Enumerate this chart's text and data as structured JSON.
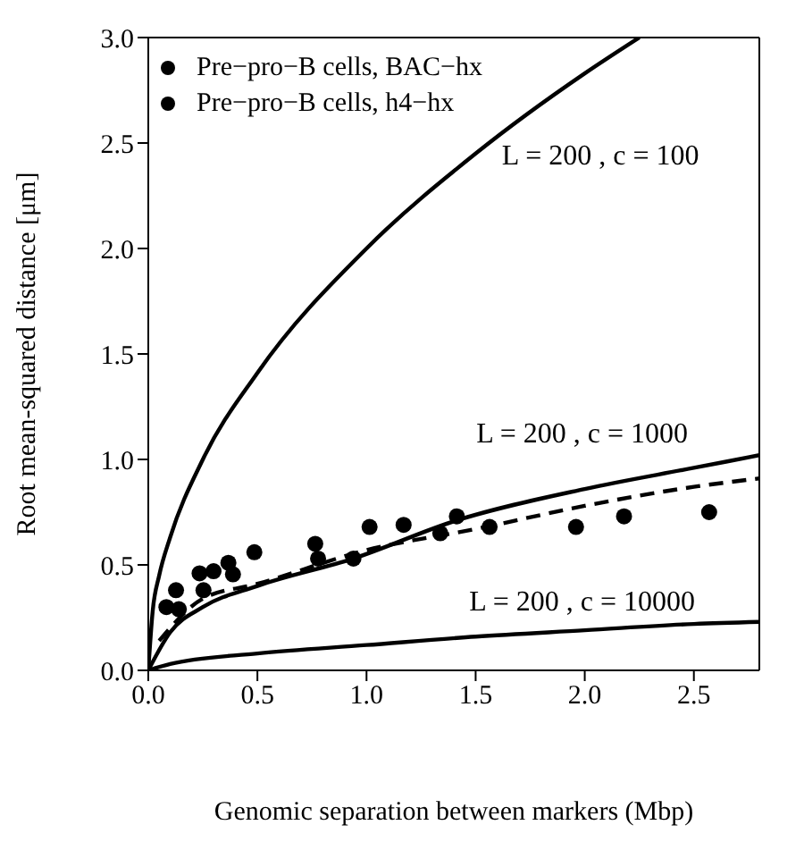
{
  "chart_data": {
    "type": "scatter",
    "xlabel": "Genomic separation between markers (Mbp)",
    "ylabel": "Root mean-squared distance [μm]",
    "xlim": [
      0,
      2.8
    ],
    "ylim": [
      0,
      3.0
    ],
    "xticks": [
      {
        "value": 0,
        "label": "0.0"
      },
      0.5,
      {
        "value": 1,
        "label": "1.0"
      },
      1.5,
      {
        "value": 2,
        "label": "2.0"
      },
      2.5
    ],
    "yticks": [
      {
        "value": 0,
        "label": "0.0"
      },
      0.5,
      {
        "value": 1,
        "label": "1.0"
      },
      1.5,
      {
        "value": 2,
        "label": "2.0"
      },
      2.5,
      {
        "value": 3,
        "label": "3.0"
      }
    ],
    "legend": "top left",
    "marker": "circle",
    "grid": false,
    "series": [
      {
        "name": "Pre−pro−B cells, BAC−hx",
        "color": "#000000",
        "x": [
          0.765,
          0.778,
          0.94,
          1.014,
          1.17,
          1.338,
          1.414,
          1.564,
          1.96,
          2.18,
          2.57
        ],
        "values": [
          0.6,
          0.53,
          0.53,
          0.68,
          0.69,
          0.65,
          0.73,
          0.68,
          0.68,
          0.73,
          0.75
        ]
      },
      {
        "name": "Pre−pro−B cells, h4−hx",
        "color": "#000000",
        "x": [
          0.083,
          0.14,
          0.127,
          0.235,
          0.253,
          0.299,
          0.367,
          0.388,
          0.486
        ],
        "values": [
          0.3,
          0.29,
          0.38,
          0.46,
          0.38,
          0.47,
          0.51,
          0.455,
          0.56
        ]
      },
      {
        "type": "line",
        "color": "#000000",
        "line_style": "solid",
        "marker": "none",
        "x": [
          0,
          0.02,
          0.05,
          0.1,
          0.25,
          0.5,
          1,
          1.5,
          2,
          2.25
        ],
        "values": [
          0,
          0.28,
          0.45,
          0.63,
          1.0,
          1.41,
          2.0,
          2.45,
          2.83,
          3.0
        ]
      },
      {
        "type": "line",
        "color": "#000000",
        "line_style": "solid",
        "marker": "none",
        "x": [
          0,
          0.1,
          0.25,
          0.5,
          0.94,
          1.41,
          2,
          2.5,
          2.8
        ],
        "values": [
          0,
          0.18,
          0.3,
          0.4,
          0.53,
          0.71,
          0.86,
          0.96,
          1.02
        ]
      },
      {
        "type": "line",
        "color": "#000000",
        "line_style": "dashed",
        "marker": "none",
        "x": [
          0.05,
          0.25,
          0.5,
          1,
          1.5,
          2,
          2.5,
          2.8
        ],
        "values": [
          0.14,
          0.34,
          0.41,
          0.57,
          0.67,
          0.78,
          0.87,
          0.91
        ]
      },
      {
        "type": "line",
        "color": "#000000",
        "line_style": "solid",
        "marker": "none",
        "x": [
          0,
          0.1,
          0.5,
          1,
          1.5,
          2,
          2.5,
          2.8
        ],
        "values": [
          0,
          0.03,
          0.08,
          0.12,
          0.16,
          0.19,
          0.22,
          0.23
        ]
      }
    ],
    "annotations": [
      "L = 200 , c = 100",
      "L = 200 , c = 1000",
      "L = 200 , c = 10000"
    ]
  }
}
